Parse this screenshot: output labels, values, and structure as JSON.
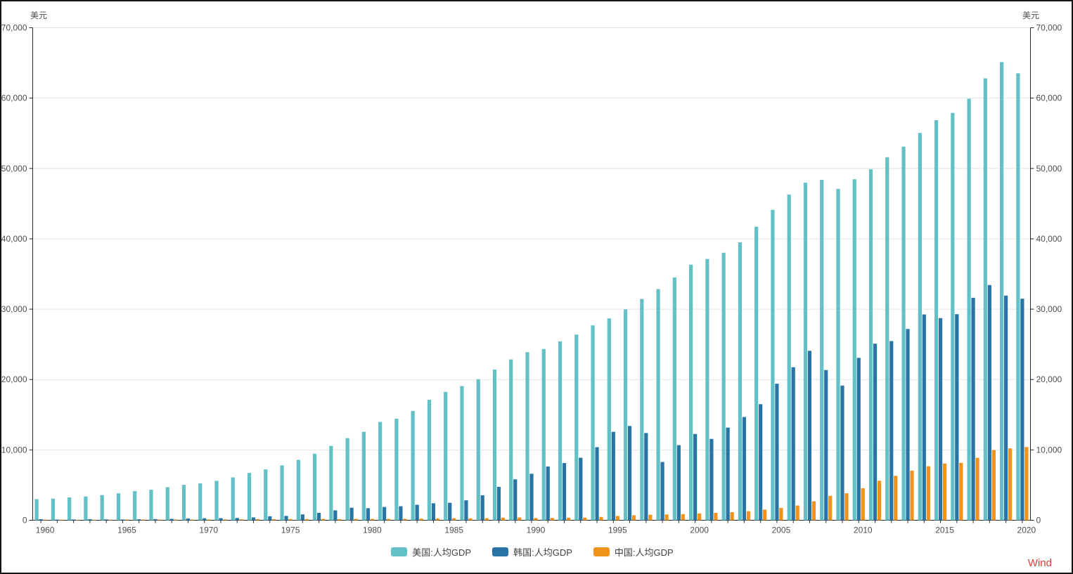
{
  "axis": {
    "left_unit": "美元",
    "right_unit": "美元"
  },
  "footer": {
    "source": "Wind"
  },
  "colors": {
    "source_red": "#d9403c",
    "axis_line": "#262626",
    "grid_line": "#e4e4e4",
    "tick_text": "#4d4d4d"
  },
  "chart_data": {
    "type": "bar",
    "title": "",
    "xlabel": "",
    "ylabel": "美元",
    "ylim": [
      0,
      70000
    ],
    "y_tick_step": 10000,
    "y_ticks": [
      "0",
      "10,000",
      "20,000",
      "30,000",
      "40,000",
      "50,000",
      "60,000",
      "70,000"
    ],
    "x_tick_labels": [
      "1960",
      "1965",
      "1970",
      "1975",
      "1980",
      "1985",
      "1990",
      "1995",
      "2000",
      "2005",
      "2010",
      "2015",
      "2020"
    ],
    "grid": "horizontal-only",
    "dual_y_axis": true,
    "legend_position": "bottom-center",
    "years": [
      1960,
      1961,
      1962,
      1963,
      1964,
      1965,
      1966,
      1967,
      1968,
      1969,
      1970,
      1971,
      1972,
      1973,
      1974,
      1975,
      1976,
      1977,
      1978,
      1979,
      1980,
      1981,
      1982,
      1983,
      1984,
      1985,
      1986,
      1987,
      1988,
      1989,
      1990,
      1991,
      1992,
      1993,
      1994,
      1995,
      1996,
      1997,
      1998,
      1999,
      2000,
      2001,
      2002,
      2003,
      2004,
      2005,
      2006,
      2007,
      2008,
      2009,
      2010,
      2011,
      2012,
      2013,
      2014,
      2015,
      2016,
      2017,
      2018,
      2019,
      2020
    ],
    "series": [
      {
        "name": "美国:人均GDP",
        "color": "#62c0c6",
        "values": [
          3007,
          3067,
          3244,
          3375,
          3574,
          3828,
          4146,
          4336,
          4696,
          5032,
          5234,
          5609,
          6094,
          6726,
          7226,
          7801,
          8592,
          9453,
          10565,
          11674,
          12575,
          13976,
          14434,
          15544,
          17121,
          18237,
          19071,
          20039,
          21417,
          22857,
          23889,
          24342,
          25419,
          26387,
          27695,
          28691,
          29968,
          31459,
          32854,
          34514,
          36330,
          37134,
          38023,
          39496,
          41713,
          44115,
          46299,
          47976,
          48383,
          47100,
          48467,
          49883,
          51603,
          53107,
          55050,
          56863,
          57904,
          59915,
          62805,
          65120,
          63528
        ]
      },
      {
        "name": "韩国:人均GDP",
        "color": "#2874a5",
        "values": [
          158,
          94,
          106,
          146,
          124,
          109,
          133,
          161,
          198,
          243,
          279,
          301,
          324,
          406,
          563,
          615,
          834,
          1056,
          1406,
          1784,
          1715,
          1883,
          1992,
          2198,
          2413,
          2482,
          2835,
          3555,
          4749,
          5817,
          6610,
          7637,
          8127,
          8885,
          10385,
          12565,
          13403,
          12398,
          8282,
          10672,
          12257,
          11561,
          13165,
          14673,
          16496,
          19403,
          21743,
          24086,
          21350,
          19143,
          23087,
          25096,
          25467,
          27183,
          29250,
          28732,
          29289,
          31617,
          33429,
          31929,
          31489
        ]
      },
      {
        "name": "中国:人均GDP",
        "color": "#f0931d",
        "values": [
          90,
          76,
          71,
          74,
          85,
          98,
          104,
          97,
          91,
          100,
          113,
          119,
          132,
          157,
          160,
          178,
          165,
          185,
          156,
          184,
          195,
          197,
          203,
          225,
          251,
          294,
          282,
          301,
          370,
          404,
          318,
          333,
          366,
          377,
          473,
          610,
          709,
          782,
          829,
          873,
          959,
          1053,
          1149,
          1289,
          1509,
          1753,
          2099,
          2694,
          3468,
          3832,
          4550,
          5618,
          6317,
          7051,
          7679,
          8067,
          8148,
          8879,
          9977,
          10217,
          10409
        ]
      }
    ]
  }
}
